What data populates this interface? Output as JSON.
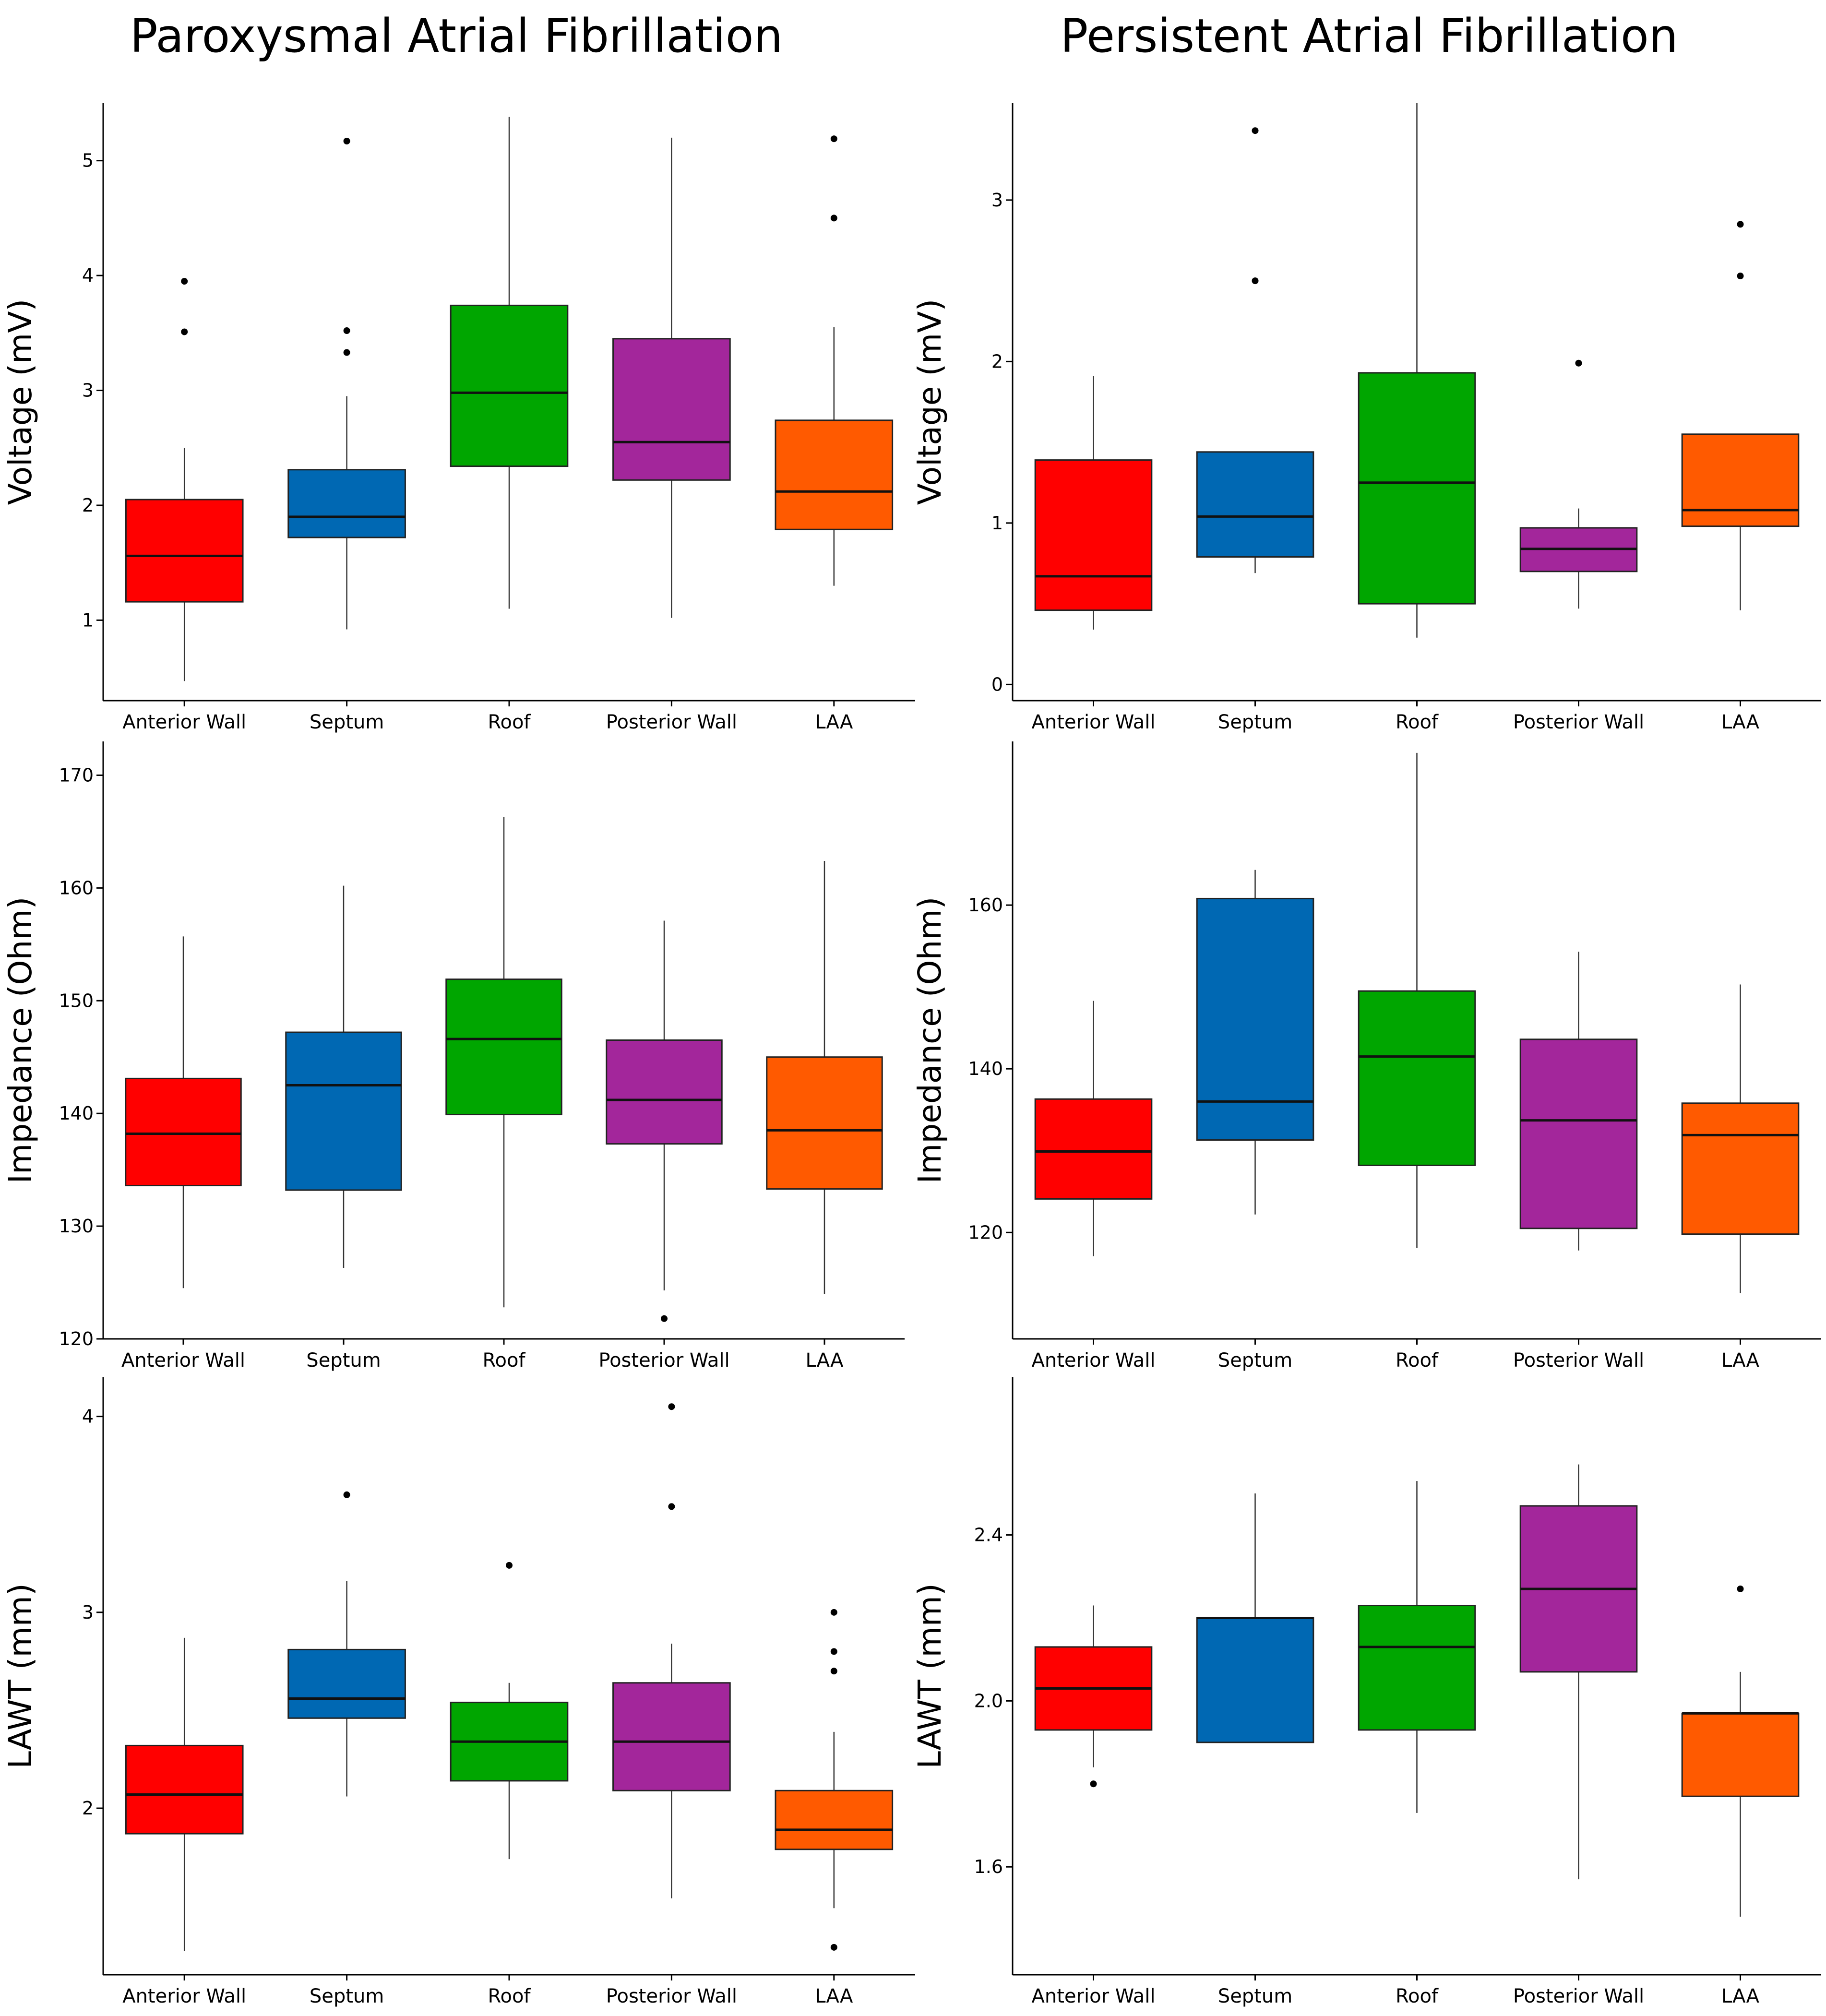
{
  "column_titles": [
    "Paroxysmal Atrial Fibrillation",
    "Persistent Atrial Fibrillation"
  ],
  "colors": {
    "Anterior Wall": "#ff0000",
    "Septum": "#0068b3",
    "Roof": "#00a600",
    "Posterior Wall": "#a3269b",
    "LAA": "#ff5a00"
  },
  "chart_data": [
    {
      "type": "box",
      "group": "Paroxysmal Atrial Fibrillation",
      "ylabel": "Voltage (mV)",
      "xlabel": "",
      "categories": [
        "Anterior Wall",
        "Septum",
        "Roof",
        "Posterior Wall",
        "LAA"
      ],
      "ylim": [
        0.3,
        5.5
      ],
      "yticks": [
        1,
        2,
        3,
        4,
        5
      ],
      "ytick_labels": [
        "1",
        "2",
        "3",
        "4",
        "5"
      ],
      "boxes": [
        {
          "category": "Anterior Wall",
          "min": 0.47,
          "q1": 1.16,
          "median": 1.56,
          "q3": 2.05,
          "max": 2.5,
          "outliers": [
            3.51,
            3.95
          ]
        },
        {
          "category": "Septum",
          "min": 0.92,
          "q1": 1.72,
          "median": 1.9,
          "q3": 2.31,
          "max": 2.95,
          "outliers": [
            3.33,
            3.52,
            5.17
          ]
        },
        {
          "category": "Roof",
          "min": 1.1,
          "q1": 2.34,
          "median": 2.98,
          "q3": 3.74,
          "max": 5.38,
          "outliers": []
        },
        {
          "category": "Posterior Wall",
          "min": 1.02,
          "q1": 2.22,
          "median": 2.55,
          "q3": 3.45,
          "max": 5.2,
          "outliers": []
        },
        {
          "category": "LAA",
          "min": 1.3,
          "q1": 1.79,
          "median": 2.12,
          "q3": 2.74,
          "max": 3.55,
          "outliers": [
            4.5,
            5.19
          ]
        }
      ]
    },
    {
      "type": "box",
      "group": "Persistent Atrial Fibrillation",
      "ylabel": "Voltage (mV)",
      "xlabel": "",
      "categories": [
        "Anterior Wall",
        "Septum",
        "Roof",
        "Posterior Wall",
        "LAA"
      ],
      "ylim": [
        -0.1,
        3.6
      ],
      "yticks": [
        0,
        1,
        2,
        3
      ],
      "ytick_labels": [
        "0",
        "1",
        "2",
        "3"
      ],
      "boxes": [
        {
          "category": "Anterior Wall",
          "min": 0.34,
          "q1": 0.46,
          "median": 0.67,
          "q3": 1.39,
          "max": 1.91,
          "outliers": []
        },
        {
          "category": "Septum",
          "min": 0.69,
          "q1": 0.79,
          "median": 1.04,
          "q3": 1.44,
          "max": 1.44,
          "outliers": [
            2.5,
            3.43
          ]
        },
        {
          "category": "Roof",
          "min": 0.29,
          "q1": 0.5,
          "median": 1.25,
          "q3": 1.93,
          "max": 3.6,
          "outliers": []
        },
        {
          "category": "Posterior Wall",
          "min": 0.47,
          "q1": 0.7,
          "median": 0.84,
          "q3": 0.97,
          "max": 1.09,
          "outliers": [
            1.99
          ]
        },
        {
          "category": "LAA",
          "min": 0.46,
          "q1": 0.98,
          "median": 1.08,
          "q3": 1.55,
          "max": 1.55,
          "outliers": [
            2.53,
            2.85
          ]
        }
      ]
    },
    {
      "type": "box",
      "group": "Paroxysmal Atrial Fibrillation",
      "ylabel": "Impedance (Ohm)",
      "xlabel": "",
      "categories": [
        "Anterior Wall",
        "Septum",
        "Roof",
        "Posterior Wall",
        "LAA"
      ],
      "ylim": [
        120,
        173
      ],
      "yticks": [
        120,
        130,
        140,
        150,
        160,
        170
      ],
      "ytick_labels": [
        "120",
        "130",
        "140",
        "150",
        "160",
        "170"
      ],
      "boxes": [
        {
          "category": "Anterior Wall",
          "min": 124.5,
          "q1": 133.6,
          "median": 138.2,
          "q3": 143.1,
          "max": 155.7,
          "outliers": []
        },
        {
          "category": "Septum",
          "min": 126.3,
          "q1": 133.2,
          "median": 142.5,
          "q3": 147.2,
          "max": 160.2,
          "outliers": []
        },
        {
          "category": "Roof",
          "min": 122.8,
          "q1": 139.9,
          "median": 146.6,
          "q3": 151.9,
          "max": 166.3,
          "outliers": []
        },
        {
          "category": "Posterior Wall",
          "min": 124.3,
          "q1": 137.3,
          "median": 141.2,
          "q3": 146.5,
          "max": 157.1,
          "outliers": [
            121.8
          ]
        },
        {
          "category": "LAA",
          "min": 124.0,
          "q1": 133.3,
          "median": 138.5,
          "q3": 145.0,
          "max": 162.4,
          "outliers": []
        }
      ]
    },
    {
      "type": "box",
      "group": "Persistent Atrial Fibrillation",
      "ylabel": "Impedance (Ohm)",
      "xlabel": "",
      "categories": [
        "Anterior Wall",
        "Septum",
        "Roof",
        "Posterior Wall",
        "LAA"
      ],
      "ylim": [
        107,
        180
      ],
      "yticks": [
        120,
        140,
        160
      ],
      "ytick_labels": [
        "120",
        "140",
        "160"
      ],
      "boxes": [
        {
          "category": "Anterior Wall",
          "min": 117.1,
          "q1": 124.1,
          "median": 129.9,
          "q3": 136.3,
          "max": 148.3,
          "outliers": []
        },
        {
          "category": "Septum",
          "min": 122.2,
          "q1": 131.3,
          "median": 136.0,
          "q3": 160.8,
          "max": 164.3,
          "outliers": []
        },
        {
          "category": "Roof",
          "min": 118.1,
          "q1": 128.2,
          "median": 141.5,
          "q3": 149.5,
          "max": 178.6,
          "outliers": []
        },
        {
          "category": "Posterior Wall",
          "min": 117.8,
          "q1": 120.5,
          "median": 133.7,
          "q3": 143.6,
          "max": 154.3,
          "outliers": []
        },
        {
          "category": "LAA",
          "min": 112.6,
          "q1": 119.8,
          "median": 131.9,
          "q3": 135.8,
          "max": 150.3,
          "outliers": []
        }
      ]
    },
    {
      "type": "box",
      "group": "Paroxysmal Atrial Fibrillation",
      "ylabel": "LAWT (mm)",
      "xlabel": "",
      "categories": [
        "Anterior Wall",
        "Septum",
        "Roof",
        "Posterior Wall",
        "LAA"
      ],
      "ylim": [
        1.15,
        4.2
      ],
      "yticks": [
        2,
        3,
        4
      ],
      "ytick_labels": [
        "2",
        "3",
        "4"
      ],
      "boxes": [
        {
          "category": "Anterior Wall",
          "min": 1.27,
          "q1": 1.87,
          "median": 2.07,
          "q3": 2.32,
          "max": 2.87,
          "outliers": []
        },
        {
          "category": "Septum",
          "min": 2.06,
          "q1": 2.46,
          "median": 2.56,
          "q3": 2.81,
          "max": 3.16,
          "outliers": [
            3.6
          ]
        },
        {
          "category": "Roof",
          "min": 1.74,
          "q1": 2.14,
          "median": 2.34,
          "q3": 2.54,
          "max": 2.64,
          "outliers": [
            3.24
          ]
        },
        {
          "category": "Posterior Wall",
          "min": 1.54,
          "q1": 2.09,
          "median": 2.34,
          "q3": 2.64,
          "max": 2.84,
          "outliers": [
            3.54,
            4.05
          ]
        },
        {
          "category": "LAA",
          "min": 1.49,
          "q1": 1.79,
          "median": 1.89,
          "q3": 2.09,
          "max": 2.39,
          "outliers": [
            1.29,
            2.7,
            2.8,
            3.0
          ]
        }
      ]
    },
    {
      "type": "box",
      "group": "Persistent Atrial Fibrillation",
      "ylabel": "LAWT (mm)",
      "xlabel": "",
      "categories": [
        "Anterior Wall",
        "Septum",
        "Roof",
        "Posterior Wall",
        "LAA"
      ],
      "ylim": [
        1.34,
        2.78
      ],
      "yticks": [
        1.6,
        2.0,
        2.4
      ],
      "ytick_labels": [
        "1.6",
        "2.0",
        "2.4"
      ],
      "boxes": [
        {
          "category": "Anterior Wall",
          "min": 1.84,
          "q1": 1.93,
          "median": 2.03,
          "q3": 2.13,
          "max": 2.23,
          "outliers": [
            1.8
          ]
        },
        {
          "category": "Septum",
          "min": 1.9,
          "q1": 1.9,
          "median": 2.2,
          "q3": 2.2,
          "max": 2.5,
          "outliers": []
        },
        {
          "category": "Roof",
          "min": 1.73,
          "q1": 1.93,
          "median": 2.13,
          "q3": 2.23,
          "max": 2.53,
          "outliers": []
        },
        {
          "category": "Posterior Wall",
          "min": 1.57,
          "q1": 2.07,
          "median": 2.27,
          "q3": 2.47,
          "max": 2.57,
          "outliers": []
        },
        {
          "category": "LAA",
          "min": 1.48,
          "q1": 1.77,
          "median": 1.97,
          "q3": 1.97,
          "max": 2.07,
          "outliers": [
            2.27
          ]
        }
      ]
    }
  ]
}
